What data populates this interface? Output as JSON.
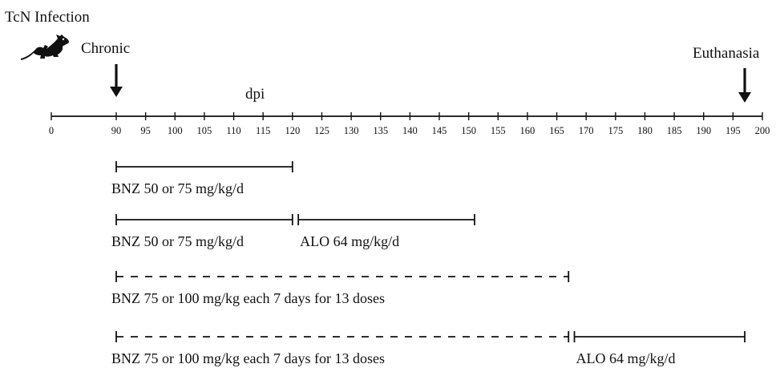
{
  "header": {
    "infection_label": "TcN Infection",
    "chronic_label": "Chronic",
    "euthanasia_label": "Euthanasia",
    "axis_label": "dpi"
  },
  "axis": {
    "ticks": [
      "0",
      "90",
      "95",
      "100",
      "105",
      "110",
      "115",
      "120",
      "125",
      "130",
      "135",
      "140",
      "145",
      "150",
      "155",
      "160",
      "165",
      "170",
      "175",
      "180",
      "185",
      "190",
      "195",
      "200"
    ]
  },
  "markers": {
    "chronic_dpi": 90,
    "euthanasia_dpi": 197
  },
  "regimens": [
    {
      "name": "regimen-1",
      "segments": [
        {
          "start": 90,
          "end": 120,
          "style": "solid",
          "label": "BNZ 50 or 75 mg/kg/d"
        }
      ]
    },
    {
      "name": "regimen-2",
      "segments": [
        {
          "start": 90,
          "end": 120,
          "style": "solid",
          "label": "BNZ 50 or 75 mg/kg/d"
        },
        {
          "start": 121,
          "end": 151,
          "style": "solid",
          "label": "ALO 64 mg/kg/d"
        }
      ]
    },
    {
      "name": "regimen-3",
      "segments": [
        {
          "start": 90,
          "end": 167,
          "style": "dashed",
          "label": "BNZ 75 or 100 mg/kg each 7 days for 13 doses"
        }
      ]
    },
    {
      "name": "regimen-4",
      "segments": [
        {
          "start": 90,
          "end": 167,
          "style": "dashed",
          "label": "BNZ 75 or 100 mg/kg each 7 days for 13 doses"
        },
        {
          "start": 168,
          "end": 197,
          "style": "solid",
          "label": "ALO 64 mg/kg/d"
        }
      ]
    }
  ]
}
